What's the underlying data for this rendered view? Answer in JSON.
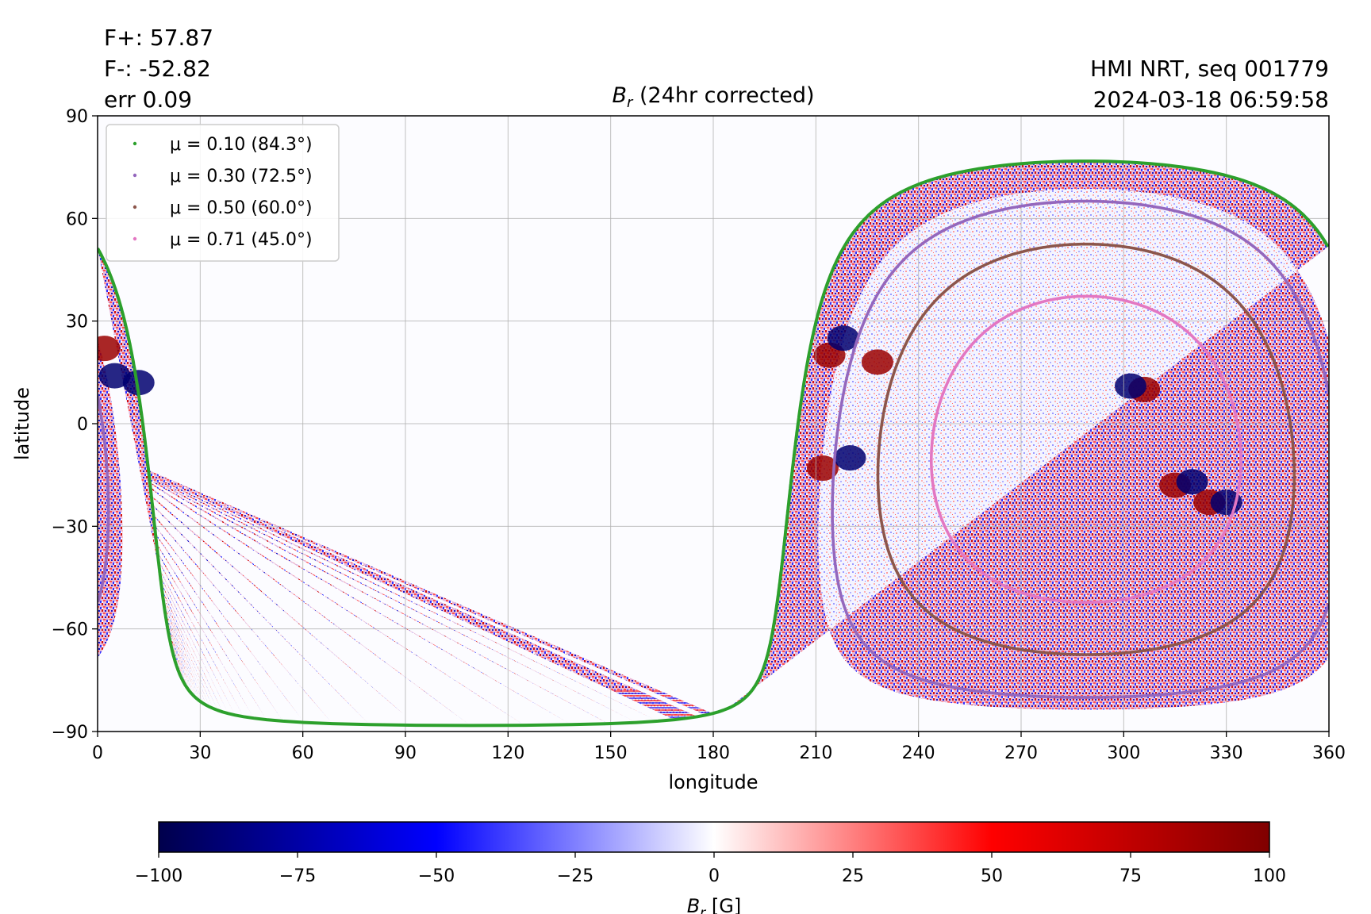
{
  "header": {
    "flux_plus": "F+: 57.87",
    "flux_minus": "F-: -52.82",
    "error": "err 0.09",
    "instrument": "HMI NRT, seq 001779",
    "timestamp": "2024-03-18 06:59:58"
  },
  "chart_data": {
    "type": "heatmap",
    "title": "(24hr corrected)",
    "title_symbol": "B",
    "title_subscript": "r",
    "xlabel": "longitude",
    "ylabel": "latitude",
    "xlim": [
      0,
      360
    ],
    "ylim": [
      -90,
      90
    ],
    "xticks": [
      0,
      30,
      60,
      90,
      120,
      150,
      180,
      210,
      240,
      270,
      300,
      330,
      360
    ],
    "yticks": [
      -90,
      -60,
      -30,
      0,
      30,
      60,
      90
    ],
    "grid": true,
    "legend_position": "top-left",
    "disk_center": {
      "lon": 289,
      "lat": -7.5
    },
    "series": [
      {
        "name": "μ = 0.10 (84.3°)",
        "mu": 0.1,
        "angle_deg": 84.3,
        "color": "#2ca02c"
      },
      {
        "name": "μ = 0.30 (72.5°)",
        "mu": 0.3,
        "angle_deg": 72.5,
        "color": "#9467bd"
      },
      {
        "name": "μ = 0.50 (60.0°)",
        "mu": 0.5,
        "angle_deg": 60.0,
        "color": "#8c564b"
      },
      {
        "name": "μ = 0.71 (45.0°)",
        "mu": 0.71,
        "angle_deg": 45.0,
        "color": "#e377c2"
      }
    ],
    "regions": [
      {
        "lon": 214,
        "lat": 20,
        "polarity": "positive"
      },
      {
        "lon": 218,
        "lat": 25,
        "polarity": "negative"
      },
      {
        "lon": 228,
        "lat": 18,
        "polarity": "positive"
      },
      {
        "lon": 212,
        "lat": -13,
        "polarity": "positive"
      },
      {
        "lon": 220,
        "lat": -10,
        "polarity": "negative"
      },
      {
        "lon": 315,
        "lat": -18,
        "polarity": "positive"
      },
      {
        "lon": 320,
        "lat": -17,
        "polarity": "negative"
      },
      {
        "lon": 325,
        "lat": -23,
        "polarity": "positive"
      },
      {
        "lon": 330,
        "lat": -23,
        "polarity": "negative"
      },
      {
        "lon": 306,
        "lat": 10,
        "polarity": "positive"
      },
      {
        "lon": 302,
        "lat": 11,
        "polarity": "negative"
      },
      {
        "lon": 2,
        "lat": 22,
        "polarity": "positive"
      },
      {
        "lon": 5,
        "lat": 14,
        "polarity": "negative"
      },
      {
        "lon": 12,
        "lat": 12,
        "polarity": "negative"
      }
    ],
    "colorbar": {
      "label_symbol": "B",
      "label_subscript": "r",
      "label_unit": "[G]",
      "range": [
        -100,
        100
      ],
      "ticks": [
        -100,
        -75,
        -50,
        -25,
        0,
        25,
        50,
        75,
        100
      ],
      "tick_labels": [
        "−100",
        "−75",
        "−50",
        "−25",
        "0",
        "25",
        "50",
        "75",
        "100"
      ],
      "colormap": "seismic",
      "colors": [
        "#00004c",
        "#0000ff",
        "#ffffff",
        "#ff0000",
        "#800000"
      ]
    }
  }
}
